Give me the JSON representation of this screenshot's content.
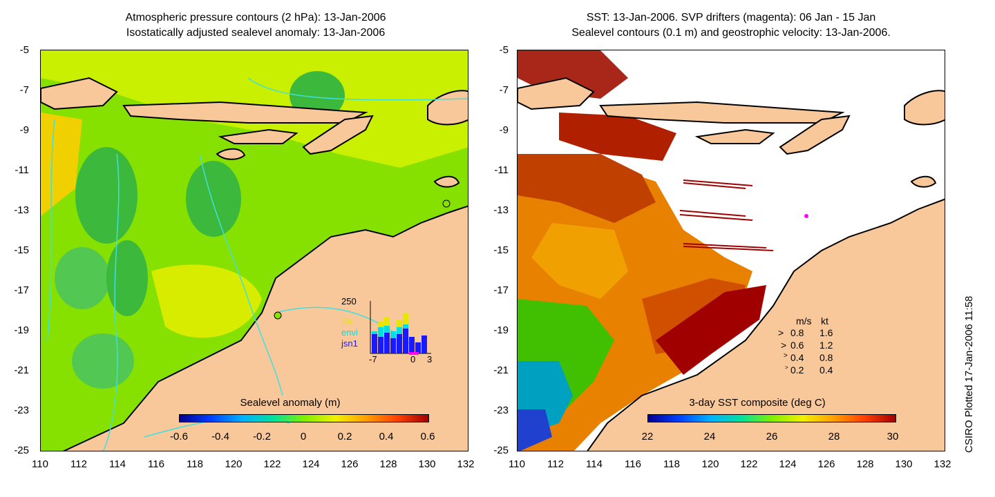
{
  "left_panel": {
    "title_line1": "Atmospheric pressure contours (2 hPa): 13-Jan-2006",
    "title_line2": "Isostatically adjusted sealevel anomaly: 13-Jan-2006",
    "colorbar_label": "Sealevel anomaly (m)",
    "colorbar_ticks": [
      "-0.6",
      "-0.4",
      "-0.2",
      "0",
      "0.2",
      "0.4",
      "0.6"
    ],
    "inset": {
      "ymax_label": "250",
      "legend": [
        "Sh",
        "envi",
        "jsn1"
      ],
      "x_ticks": [
        "-7",
        "0",
        "3"
      ],
      "colors": {
        "top": "#e6e600",
        "mid": "#00e0e0",
        "bottom": "#1a1aff"
      }
    }
  },
  "right_panel": {
    "title_line1": "SST: 13-Jan-2006. SVP drifters (magenta): 06 Jan - 15 Jan",
    "title_line2": "Sealevel contours (0.1 m) and geostrophic velocity: 13-Jan-2006.",
    "colorbar_label": "3-day SST composite (deg C)",
    "colorbar_ticks": [
      "22",
      "24",
      "26",
      "28",
      "30"
    ],
    "velocity_legend": {
      "header_ms": "m/s",
      "header_kt": "kt",
      "rows": [
        {
          "ms": "0.8",
          "kt": "1.6"
        },
        {
          "ms": "0.6",
          "kt": "1.2"
        },
        {
          "ms": "0.4",
          "kt": "0.8"
        },
        {
          "ms": "0.2",
          "kt": "0.4"
        }
      ]
    }
  },
  "axes": {
    "y_ticks": [
      "-5",
      "-7",
      "-9",
      "-11",
      "-13",
      "-15",
      "-17",
      "-19",
      "-21",
      "-23",
      "-25"
    ],
    "x_ticks": [
      "110",
      "112",
      "114",
      "116",
      "118",
      "120",
      "122",
      "124",
      "126",
      "128",
      "130",
      "132"
    ]
  },
  "credit": "CSIRO Plotted 17-Jan-2006 11:58",
  "colors": {
    "land": "#f8c89a",
    "sla_green": "#7de000",
    "sla_yellow": "#d8f000",
    "sla_dark_green": "#2ea82e",
    "sst_red": "#a00000",
    "sst_orange": "#e06000",
    "contour_cyan": "#40e0e0"
  }
}
